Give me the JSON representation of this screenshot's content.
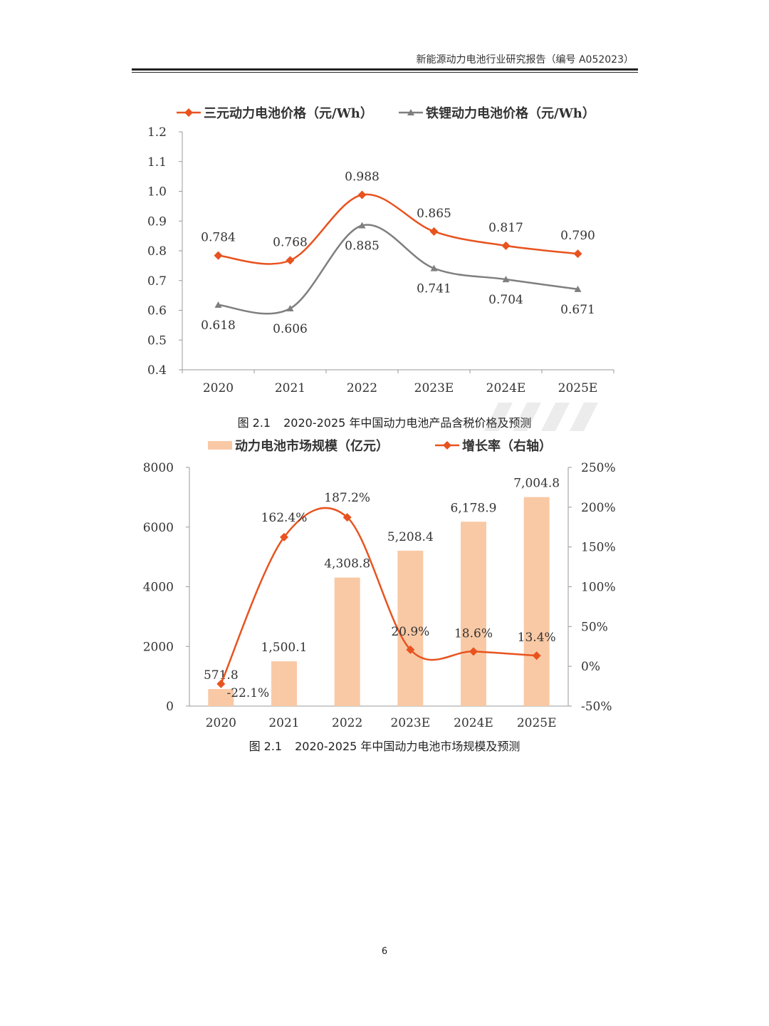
{
  "header": {
    "title": "新能源动力电池行业研究报告（编号 A052023）"
  },
  "colors": {
    "orange": "#e8531f",
    "gray": "#7f7f7f",
    "bar": "#f9c9a5",
    "axis": "#aaaaaa"
  },
  "chart_data": [
    {
      "type": "line",
      "categories": [
        "2020",
        "2021",
        "2022",
        "2023E",
        "2024E",
        "2025E"
      ],
      "series": [
        {
          "name": "三元动力电池价格（元/Wh）",
          "values": [
            0.784,
            0.768,
            0.988,
            0.865,
            0.817,
            0.79
          ],
          "labels": [
            "0.784",
            "0.768",
            "0.988",
            "0.865",
            "0.817",
            "0.790"
          ],
          "marker": "diamond"
        },
        {
          "name": "铁锂动力电池价格（元/Wh）",
          "values": [
            0.618,
            0.606,
            0.885,
            0.741,
            0.704,
            0.671
          ],
          "labels": [
            "0.618",
            "0.606",
            "0.885",
            "0.741",
            "0.704",
            "0.671"
          ],
          "marker": "triangle"
        }
      ],
      "yticks": [
        "0.4",
        "0.5",
        "0.6",
        "0.7",
        "0.8",
        "0.9",
        "1.0",
        "1.1",
        "1.2"
      ],
      "ylim": [
        0.4,
        1.2
      ],
      "legend": "top"
    },
    {
      "type": "bar+line",
      "categories": [
        "2020",
        "2021",
        "2022",
        "2023E",
        "2024E",
        "2025E"
      ],
      "bar_series": {
        "name": "动力电池市场规模（亿元）",
        "values": [
          571.8,
          1500.1,
          4308.8,
          5208.4,
          6178.9,
          7004.8
        ],
        "labels": [
          "571.8",
          "1,500.1",
          "4,308.8",
          "5,208.4",
          "6,178.9",
          "7,004.8"
        ]
      },
      "line_series": {
        "name": "增长率（右轴）",
        "values": [
          -22.1,
          162.4,
          187.2,
          20.9,
          18.6,
          13.4
        ],
        "labels": [
          "-22.1%",
          "162.4%",
          "187.2%",
          "20.9%",
          "18.6%",
          "13.4%"
        ]
      },
      "left_yticks": [
        "0",
        "2000",
        "4000",
        "6000",
        "8000"
      ],
      "left_ylim": [
        0,
        8000
      ],
      "right_yticks": [
        "-50%",
        "0%",
        "50%",
        "100%",
        "150%",
        "200%",
        "250%"
      ],
      "right_ylim": [
        -50,
        250
      ],
      "legend": "top"
    }
  ],
  "captions": [
    {
      "num": "图 2.1",
      "text": "2020-2025 年中国动力电池产品含税价格及预测"
    },
    {
      "num": "图 2.1",
      "text": "2020-2025 年中国动力电池市场规模及预测"
    }
  ],
  "page_number": "6"
}
